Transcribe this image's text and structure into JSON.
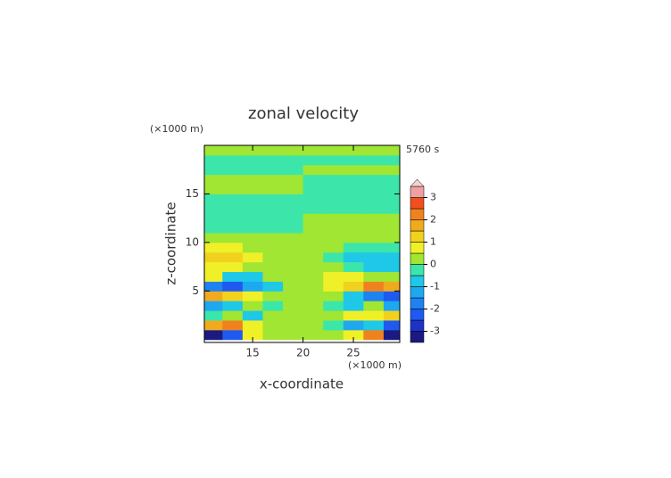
{
  "chart_data": {
    "type": "contour",
    "title": "zonal velocity",
    "x_unit": "(×1000 m)",
    "z_unit": "(×1000 m)",
    "time_label": "5760 s",
    "xlabel": "x-coordinate",
    "ylabel": "z-coordinate",
    "xlim": [
      10.2,
      29.6
    ],
    "ylim": [
      -0.3,
      20
    ],
    "xticks": [
      15,
      20,
      25
    ],
    "yticks": [
      5,
      10,
      15
    ],
    "x": [
      11,
      13,
      15,
      17,
      19,
      21,
      23,
      25,
      27,
      29
    ],
    "z": [
      0.5,
      1.5,
      2.5,
      3.5,
      4.5,
      5.5,
      6.5,
      7.5,
      8.5,
      9.5,
      10.5,
      11.5,
      12.5,
      13.5,
      14.5,
      15.5,
      16.5,
      17.5,
      18.5,
      19.5
    ],
    "values": [
      [
        -3.2,
        -2.2,
        0.7,
        0.2,
        0.2,
        0.2,
        0.2,
        0.7,
        2.2,
        -3.2
      ],
      [
        1.7,
        2.2,
        0.7,
        0.2,
        0.2,
        0.2,
        -0.2,
        -1.2,
        -0.7,
        -2.2
      ],
      [
        -0.2,
        0.2,
        -0.7,
        0.2,
        0.2,
        0.2,
        0.2,
        0.7,
        0.7,
        1.2
      ],
      [
        -1.2,
        -0.7,
        0.2,
        -0.2,
        0.2,
        0.2,
        -0.2,
        -0.7,
        0.2,
        -1.2
      ],
      [
        1.7,
        1.2,
        0.7,
        0.2,
        0.2,
        0.2,
        0.2,
        -0.7,
        -1.7,
        -2.2
      ],
      [
        -1.7,
        -2.2,
        -1.2,
        -0.7,
        0.2,
        0.2,
        0.7,
        1.2,
        2.2,
        1.7
      ],
      [
        0.7,
        -0.7,
        -0.7,
        0.2,
        0.2,
        0.2,
        0.7,
        0.7,
        0.2,
        0.2
      ],
      [
        0.7,
        0.7,
        0.2,
        0.2,
        0.2,
        0.2,
        0.2,
        -0.2,
        -0.7,
        -0.7
      ],
      [
        1.2,
        1.2,
        0.7,
        0.2,
        0.2,
        0.2,
        -0.2,
        -0.7,
        -0.7,
        -0.7
      ],
      [
        0.7,
        0.7,
        0.2,
        0.2,
        0.2,
        0.2,
        0.2,
        -0.2,
        -0.2,
        -0.2
      ],
      [
        0.2,
        0.2,
        0.2,
        0.2,
        0.2,
        0.2,
        0.2,
        0.2,
        0.2,
        0.2
      ],
      [
        -0.2,
        -0.2,
        -0.2,
        -0.2,
        -0.2,
        0.2,
        0.2,
        0.2,
        0.2,
        0.2
      ],
      [
        -0.2,
        -0.2,
        -0.2,
        -0.2,
        -0.2,
        0.2,
        0.2,
        0.2,
        0.2,
        0.2
      ],
      [
        -0.2,
        -0.2,
        -0.2,
        -0.2,
        -0.2,
        -0.2,
        -0.2,
        -0.2,
        -0.2,
        -0.2
      ],
      [
        -0.2,
        -0.2,
        -0.2,
        -0.2,
        -0.2,
        -0.2,
        -0.2,
        -0.2,
        -0.2,
        -0.2
      ],
      [
        0.2,
        0.2,
        0.2,
        0.2,
        0.2,
        -0.2,
        -0.2,
        -0.2,
        -0.2,
        -0.2
      ],
      [
        0.2,
        0.2,
        0.2,
        0.2,
        0.2,
        -0.2,
        -0.2,
        -0.2,
        -0.2,
        -0.2
      ],
      [
        -0.2,
        -0.2,
        -0.2,
        -0.2,
        -0.2,
        0.2,
        0.2,
        0.2,
        0.2,
        0.2
      ],
      [
        -0.2,
        -0.2,
        -0.2,
        -0.2,
        -0.2,
        -0.2,
        -0.2,
        -0.2,
        -0.2,
        -0.2
      ],
      [
        0.2,
        0.2,
        0.2,
        0.2,
        0.2,
        0.2,
        0.2,
        0.2,
        0.2,
        0.2
      ]
    ],
    "levels": [
      -3.5,
      -3,
      -2.5,
      -2,
      -1.5,
      -1,
      -0.5,
      0,
      0.5,
      1,
      1.5,
      2,
      2.5,
      3,
      3.5
    ],
    "colors": [
      "#1a1a80",
      "#1e32c8",
      "#1e5af0",
      "#1e82f0",
      "#1ea8f0",
      "#1ec8e6",
      "#3ce6aa",
      "#a0e632",
      "#f0f028",
      "#f0d21e",
      "#f0aa1e",
      "#f0821e",
      "#f0501e",
      "#e61e1e"
    ],
    "top_color": "#f0a0a0",
    "over_color": "#f5d0d0",
    "colorbar_ticks": [
      -3,
      -2,
      -1,
      0,
      1,
      2,
      3
    ]
  }
}
